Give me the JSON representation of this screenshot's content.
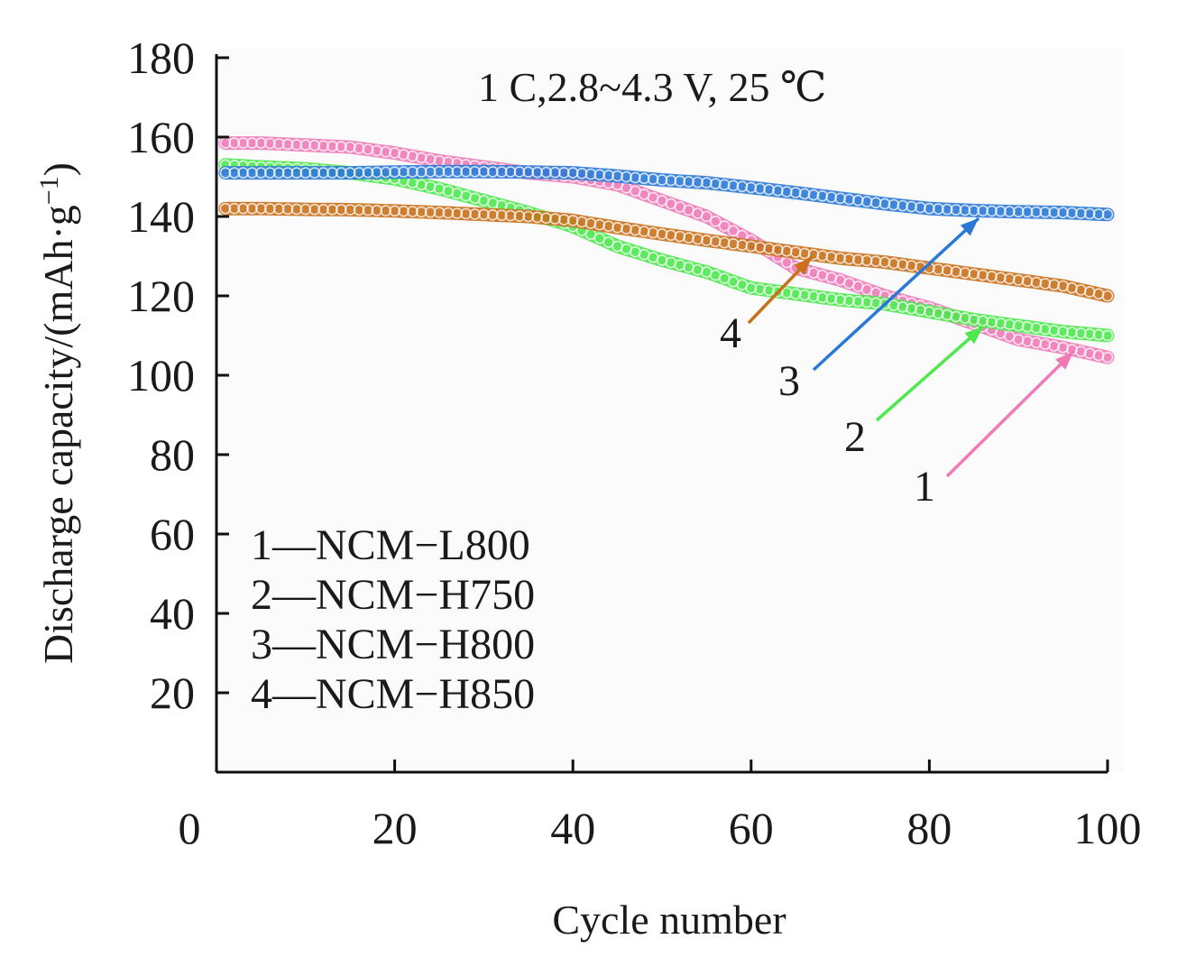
{
  "chart_data": {
    "type": "line",
    "title": "",
    "annotation": "1 C,2.8~4.3 V, 25 ℃",
    "xlabel": "Cycle number",
    "ylabel_main": "Discharge capacity/(mAh·g",
    "ylabel_sup": "−1",
    "ylabel_end": ")",
    "xlim": [
      0,
      100
    ],
    "ylim": [
      0,
      180
    ],
    "x_ticks": [
      "0",
      "20",
      "40",
      "60",
      "80",
      "100"
    ],
    "y_ticks": [
      "20",
      "40",
      "60",
      "80",
      "100",
      "120",
      "140",
      "160",
      "180"
    ],
    "x_tick_values": [
      0,
      20,
      40,
      60,
      80,
      100
    ],
    "y_tick_values": [
      20,
      40,
      60,
      80,
      100,
      120,
      140,
      160,
      180
    ],
    "legend_position": "bottom-left",
    "series": [
      {
        "name": "NCM−L800",
        "label": "1",
        "legend_entry": "1—NCM−L800",
        "color": "#f07ab8",
        "points": [
          [
            1,
            158.5
          ],
          [
            5,
            158.5
          ],
          [
            10,
            158
          ],
          [
            15,
            157.5
          ],
          [
            20,
            156
          ],
          [
            25,
            154
          ],
          [
            30,
            152.5
          ],
          [
            35,
            151
          ],
          [
            40,
            150
          ],
          [
            45,
            148
          ],
          [
            50,
            144
          ],
          [
            55,
            140
          ],
          [
            60,
            134
          ],
          [
            65,
            127
          ],
          [
            70,
            124
          ],
          [
            75,
            120
          ],
          [
            80,
            117
          ],
          [
            85,
            113
          ],
          [
            90,
            109
          ],
          [
            95,
            107
          ],
          [
            100,
            104.5
          ]
        ]
      },
      {
        "name": "NCM−H750",
        "label": "2",
        "legend_entry": "2—NCM−H750",
        "color": "#4de84d",
        "points": [
          [
            1,
            153
          ],
          [
            5,
            152.5
          ],
          [
            10,
            152
          ],
          [
            15,
            151
          ],
          [
            20,
            149.5
          ],
          [
            25,
            147
          ],
          [
            30,
            144
          ],
          [
            35,
            141
          ],
          [
            40,
            137.5
          ],
          [
            45,
            132.5
          ],
          [
            50,
            129
          ],
          [
            55,
            126
          ],
          [
            60,
            122
          ],
          [
            65,
            120.5
          ],
          [
            70,
            119
          ],
          [
            75,
            118
          ],
          [
            80,
            116
          ],
          [
            85,
            114
          ],
          [
            90,
            112.5
          ],
          [
            95,
            111
          ],
          [
            100,
            110
          ]
        ]
      },
      {
        "name": "NCM−H800",
        "label": "3",
        "legend_entry": "3—NCM−H800",
        "color": "#2a78d6",
        "points": [
          [
            1,
            151
          ],
          [
            5,
            151
          ],
          [
            10,
            151
          ],
          [
            15,
            151
          ],
          [
            20,
            151.2
          ],
          [
            25,
            151.3
          ],
          [
            30,
            151.3
          ],
          [
            35,
            151.2
          ],
          [
            40,
            151
          ],
          [
            45,
            150.2
          ],
          [
            50,
            149.2
          ],
          [
            55,
            148.5
          ],
          [
            60,
            147.3
          ],
          [
            65,
            146
          ],
          [
            70,
            144.6
          ],
          [
            75,
            143.2
          ],
          [
            80,
            142
          ],
          [
            85,
            141.5
          ],
          [
            90,
            141.2
          ],
          [
            95,
            141
          ],
          [
            100,
            140.5
          ]
        ]
      },
      {
        "name": "NCM−H850",
        "label": "4",
        "legend_entry": "4—NCM−H850",
        "color": "#c8701a",
        "points": [
          [
            1,
            142
          ],
          [
            5,
            142
          ],
          [
            10,
            141.8
          ],
          [
            15,
            141.7
          ],
          [
            20,
            141.4
          ],
          [
            25,
            141
          ],
          [
            30,
            140.5
          ],
          [
            35,
            140
          ],
          [
            40,
            139
          ],
          [
            45,
            137.2
          ],
          [
            50,
            135.6
          ],
          [
            55,
            134
          ],
          [
            60,
            132.5
          ],
          [
            65,
            131
          ],
          [
            70,
            129.5
          ],
          [
            75,
            128.5
          ],
          [
            80,
            127
          ],
          [
            85,
            125.5
          ],
          [
            90,
            124
          ],
          [
            95,
            122.5
          ],
          [
            100,
            120
          ]
        ]
      }
    ]
  }
}
